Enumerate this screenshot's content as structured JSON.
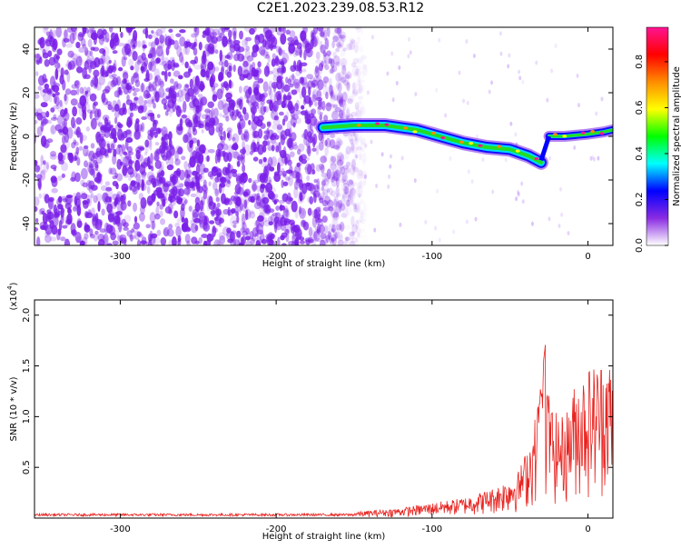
{
  "title": "C2E1.2023.239.08.53.R12",
  "chart_data": [
    {
      "type": "heatmap",
      "xlabel": "Height of straight line (km)",
      "ylabel": "Frequency (Hz)",
      "xlim": [
        -355,
        16
      ],
      "ylim": [
        -50,
        50
      ],
      "xticks": [
        -300,
        -200,
        -100,
        0
      ],
      "xtick_labels": [
        "-300",
        "-200",
        "-100",
        "0"
      ],
      "yticks": [
        -40,
        -20,
        0,
        20,
        40
      ],
      "ytick_labels": [
        "-40",
        "-20",
        "0",
        "20",
        "40"
      ],
      "colorbar": {
        "label": "Normalized spectral amplitude",
        "range": [
          0,
          0.95
        ],
        "ticks": [
          0.0,
          0.2,
          0.4,
          0.6,
          0.8
        ],
        "tick_labels": [
          "0.0",
          "0.2",
          "0.4",
          "0.6",
          "0.8"
        ],
        "colormap": [
          "#ffffff",
          "#8a2be2",
          "#0000ff",
          "#00ffff",
          "#00ff00",
          "#ffff00",
          "#ff8c00",
          "#ff0000",
          "#ff1493"
        ]
      },
      "noise_region": {
        "x_from": -355,
        "x_to": -155,
        "color": "#7a1fe8",
        "y_range": [
          -50,
          50
        ]
      },
      "signal_track": {
        "x": [
          -170,
          -150,
          -130,
          -110,
          -95,
          -80,
          -65,
          -50,
          -38,
          -30,
          -25,
          -15,
          0,
          10,
          16
        ],
        "y": [
          4,
          5,
          5,
          3,
          0,
          -3,
          -5,
          -6,
          -9,
          -12,
          0,
          0,
          1,
          2,
          3
        ]
      },
      "grid": false
    },
    {
      "type": "line",
      "xlabel": "Height of straight line (km)",
      "ylabel": "SNR (10 * v/v)",
      "y_multiplier": "(x10^4)",
      "xlim": [
        -355,
        16
      ],
      "ylim": [
        0,
        2.15
      ],
      "xticks": [
        -300,
        -200,
        -100,
        0
      ],
      "xtick_labels": [
        "-300",
        "-200",
        "-100",
        "0"
      ],
      "yticks": [
        0.5,
        1.0,
        1.5,
        2.0
      ],
      "ytick_labels": [
        "0.5",
        "1.0",
        "1.5",
        "2.0"
      ],
      "series": [
        {
          "color": "#e8231f",
          "envelope": {
            "x": [
              -355,
              -200,
              -150,
              -120,
              -100,
              -80,
              -60,
              -45,
              -40,
              -35,
              -30,
              -28,
              -26,
              -22,
              -15,
              -8,
              0,
              8,
              12,
              16
            ],
            "y": [
              0.03,
              0.035,
              0.06,
              0.1,
              0.15,
              0.2,
              0.3,
              0.45,
              0.65,
              0.9,
              1.4,
              2.1,
              1.3,
              1.05,
              1.0,
              1.35,
              1.5,
              1.55,
              1.7,
              1.4
            ]
          }
        }
      ],
      "grid": false
    }
  ]
}
